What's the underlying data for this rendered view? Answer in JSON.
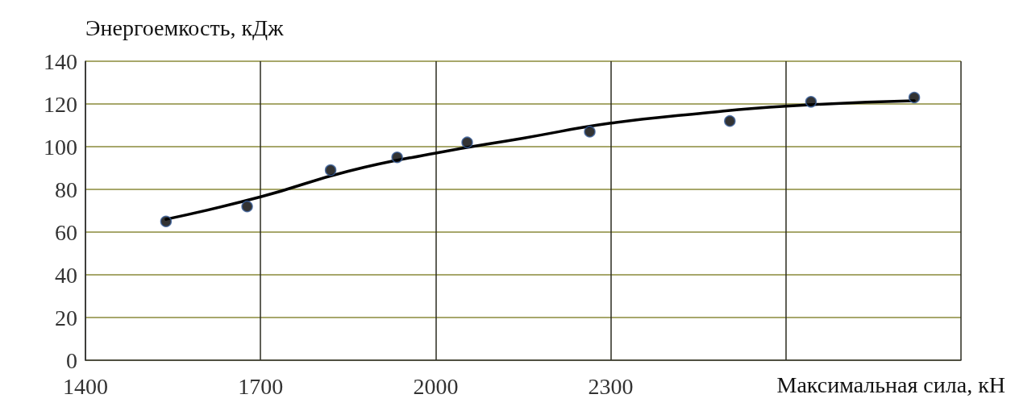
{
  "chart_data": {
    "type": "scatter",
    "xlabel": "Максимальная сила, кН",
    "ylabel": "Энергоемкость, кДж",
    "x": [
      1538,
      1677,
      1820,
      1934,
      2054,
      2264,
      2504,
      2643,
      2820
    ],
    "series": [
      {
        "color": "#000000",
        "marker": "circle",
        "values": [
          65,
          72,
          89,
          95,
          102,
          107,
          112,
          121,
          123
        ]
      },
      {
        "type": "line",
        "color": "#000000",
        "marker": "none",
        "line_style": "solid",
        "x": [
          1538,
          1700,
          1850,
          2000,
          2150,
          2300,
          2450,
          2600,
          2820
        ],
        "values": [
          66,
          76.5,
          88.5,
          97,
          104,
          111,
          115.5,
          119,
          121.5
        ]
      }
    ],
    "xlim": [
      1400,
      2900
    ],
    "xticks": [
      1400,
      1700,
      2000,
      2300,
      {
        "value": 2600,
        "label": null
      },
      {
        "value": 2900,
        "label": null
      }
    ],
    "ylim": [
      0,
      140
    ],
    "yticks": [
      0,
      20,
      40,
      60,
      80,
      100,
      120,
      140
    ],
    "grid": true
  }
}
